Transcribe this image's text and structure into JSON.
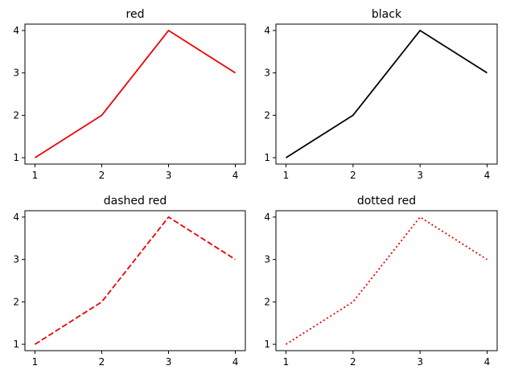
{
  "chart_data": [
    {
      "type": "line",
      "title": "red",
      "xlabel": "",
      "ylabel": "",
      "x": [
        1,
        2,
        3,
        4
      ],
      "series": [
        {
          "values": [
            1,
            2,
            4,
            3
          ],
          "color": "#ee0000",
          "linestyle": "solid"
        }
      ],
      "xticks": [
        "1",
        "2",
        "3",
        "4"
      ],
      "yticks": [
        "1",
        "2",
        "3",
        "4"
      ],
      "xlim": [
        0.85,
        4.15
      ],
      "ylim": [
        0.85,
        4.15
      ],
      "grid": false
    },
    {
      "type": "line",
      "title": "black",
      "xlabel": "",
      "ylabel": "",
      "x": [
        1,
        2,
        3,
        4
      ],
      "series": [
        {
          "values": [
            1,
            2,
            4,
            3
          ],
          "color": "#000000",
          "linestyle": "solid"
        }
      ],
      "xticks": [
        "1",
        "2",
        "3",
        "4"
      ],
      "yticks": [
        "1",
        "2",
        "3",
        "4"
      ],
      "xlim": [
        0.85,
        4.15
      ],
      "ylim": [
        0.85,
        4.15
      ],
      "grid": false
    },
    {
      "type": "line",
      "title": "dashed red",
      "xlabel": "",
      "ylabel": "",
      "x": [
        1,
        2,
        3,
        4
      ],
      "series": [
        {
          "values": [
            1,
            2,
            4,
            3
          ],
          "color": "#ee0000",
          "linestyle": "dashed"
        }
      ],
      "xticks": [
        "1",
        "2",
        "3",
        "4"
      ],
      "yticks": [
        "1",
        "2",
        "3",
        "4"
      ],
      "xlim": [
        0.85,
        4.15
      ],
      "ylim": [
        0.85,
        4.15
      ],
      "grid": false
    },
    {
      "type": "line",
      "title": "dotted red",
      "xlabel": "",
      "ylabel": "",
      "x": [
        1,
        2,
        3,
        4
      ],
      "series": [
        {
          "values": [
            1,
            2,
            4,
            3
          ],
          "color": "#ee0000",
          "linestyle": "dotted"
        }
      ],
      "xticks": [
        "1",
        "2",
        "3",
        "4"
      ],
      "yticks": [
        "1",
        "2",
        "3",
        "4"
      ],
      "xlim": [
        0.85,
        4.15
      ],
      "ylim": [
        0.85,
        4.15
      ],
      "grid": false
    }
  ]
}
